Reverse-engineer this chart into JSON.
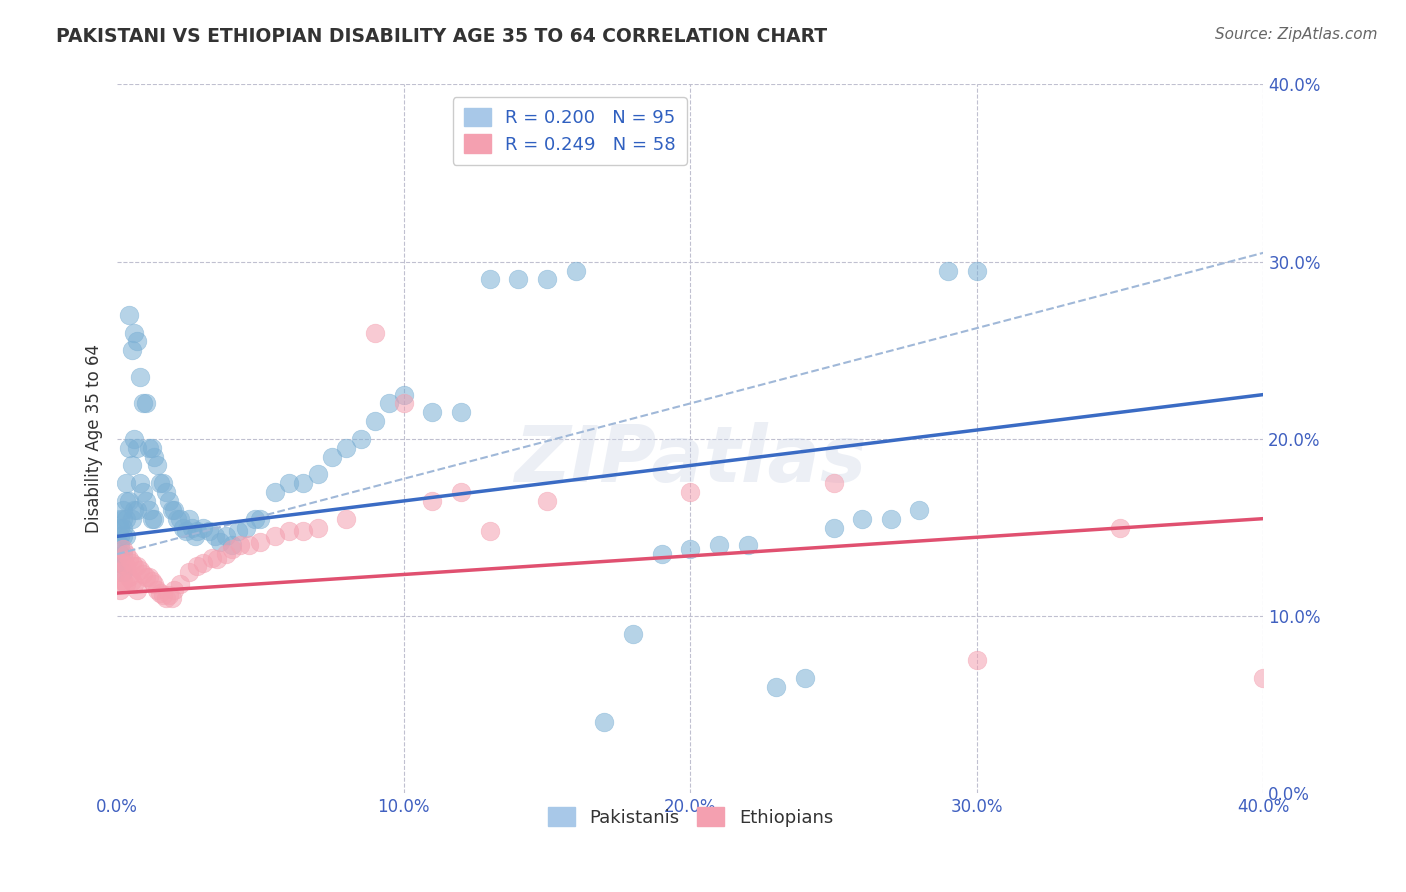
{
  "title": "PAKISTANI VS ETHIOPIAN DISABILITY AGE 35 TO 64 CORRELATION CHART",
  "source": "Source: ZipAtlas.com",
  "ylabel": "Disability Age 35 to 64",
  "xlim": [
    0.0,
    0.4
  ],
  "ylim": [
    0.0,
    0.4
  ],
  "pakistani_color": "#7bafd4",
  "ethiopian_color": "#f4a0b0",
  "pakistani_line_color": "#3a6bc4",
  "ethiopian_line_color": "#e05070",
  "dashed_line_color": "#a0b8d8",
  "R_pakistani": 0.2,
  "N_pakistani": 95,
  "R_ethiopian": 0.249,
  "N_ethiopian": 58,
  "legend_label_1": "R = 0.200   N = 95",
  "legend_label_2": "R = 0.249   N = 58",
  "legend_color_text": "#3060c0",
  "pakistani_x": [
    0.001,
    0.001,
    0.001,
    0.001,
    0.001,
    0.001,
    0.002,
    0.002,
    0.002,
    0.002,
    0.002,
    0.002,
    0.003,
    0.003,
    0.003,
    0.003,
    0.004,
    0.004,
    0.004,
    0.005,
    0.005,
    0.005,
    0.006,
    0.006,
    0.006,
    0.007,
    0.007,
    0.007,
    0.008,
    0.008,
    0.009,
    0.009,
    0.01,
    0.01,
    0.011,
    0.011,
    0.012,
    0.012,
    0.013,
    0.013,
    0.014,
    0.015,
    0.016,
    0.017,
    0.018,
    0.019,
    0.02,
    0.021,
    0.022,
    0.023,
    0.024,
    0.025,
    0.026,
    0.027,
    0.028,
    0.03,
    0.032,
    0.034,
    0.036,
    0.038,
    0.04,
    0.042,
    0.045,
    0.048,
    0.05,
    0.055,
    0.06,
    0.065,
    0.07,
    0.075,
    0.08,
    0.085,
    0.09,
    0.095,
    0.1,
    0.11,
    0.12,
    0.13,
    0.14,
    0.15,
    0.16,
    0.17,
    0.18,
    0.19,
    0.2,
    0.21,
    0.22,
    0.23,
    0.24,
    0.25,
    0.26,
    0.27,
    0.28,
    0.29,
    0.3
  ],
  "pakistani_y": [
    0.155,
    0.15,
    0.145,
    0.14,
    0.135,
    0.13,
    0.16,
    0.155,
    0.15,
    0.145,
    0.135,
    0.125,
    0.175,
    0.165,
    0.155,
    0.145,
    0.27,
    0.195,
    0.165,
    0.25,
    0.185,
    0.155,
    0.26,
    0.2,
    0.16,
    0.255,
    0.195,
    0.16,
    0.235,
    0.175,
    0.22,
    0.17,
    0.22,
    0.165,
    0.195,
    0.16,
    0.195,
    0.155,
    0.19,
    0.155,
    0.185,
    0.175,
    0.175,
    0.17,
    0.165,
    0.16,
    0.16,
    0.155,
    0.155,
    0.15,
    0.148,
    0.155,
    0.15,
    0.145,
    0.148,
    0.15,
    0.148,
    0.145,
    0.142,
    0.145,
    0.14,
    0.148,
    0.15,
    0.155,
    0.155,
    0.17,
    0.175,
    0.175,
    0.18,
    0.19,
    0.195,
    0.2,
    0.21,
    0.22,
    0.225,
    0.215,
    0.215,
    0.29,
    0.29,
    0.29,
    0.295,
    0.04,
    0.09,
    0.135,
    0.138,
    0.14,
    0.14,
    0.06,
    0.065,
    0.15,
    0.155,
    0.155,
    0.16,
    0.295,
    0.295
  ],
  "ethiopian_x": [
    0.001,
    0.001,
    0.001,
    0.001,
    0.002,
    0.002,
    0.002,
    0.003,
    0.003,
    0.003,
    0.004,
    0.004,
    0.005,
    0.005,
    0.006,
    0.006,
    0.007,
    0.007,
    0.008,
    0.009,
    0.01,
    0.011,
    0.012,
    0.013,
    0.014,
    0.015,
    0.016,
    0.017,
    0.018,
    0.019,
    0.02,
    0.022,
    0.025,
    0.028,
    0.03,
    0.033,
    0.035,
    0.038,
    0.04,
    0.043,
    0.046,
    0.05,
    0.055,
    0.06,
    0.065,
    0.07,
    0.08,
    0.09,
    0.1,
    0.11,
    0.12,
    0.13,
    0.15,
    0.2,
    0.25,
    0.3,
    0.35,
    0.4
  ],
  "ethiopian_y": [
    0.13,
    0.125,
    0.12,
    0.115,
    0.138,
    0.13,
    0.12,
    0.135,
    0.128,
    0.118,
    0.132,
    0.122,
    0.13,
    0.12,
    0.128,
    0.118,
    0.128,
    0.115,
    0.126,
    0.124,
    0.122,
    0.122,
    0.12,
    0.118,
    0.115,
    0.113,
    0.112,
    0.11,
    0.112,
    0.11,
    0.115,
    0.118,
    0.125,
    0.128,
    0.13,
    0.133,
    0.132,
    0.135,
    0.138,
    0.14,
    0.14,
    0.142,
    0.145,
    0.148,
    0.148,
    0.15,
    0.155,
    0.26,
    0.22,
    0.165,
    0.17,
    0.148,
    0.165,
    0.17,
    0.175,
    0.075,
    0.15,
    0.065
  ],
  "pak_line_x0": 0.0,
  "pak_line_x1": 0.4,
  "pak_line_y0": 0.145,
  "pak_line_y1": 0.225,
  "eth_line_x0": 0.0,
  "eth_line_x1": 0.4,
  "eth_line_y0": 0.113,
  "eth_line_y1": 0.155,
  "dash_line_x0": 0.0,
  "dash_line_x1": 0.4,
  "dash_line_y0": 0.135,
  "dash_line_y1": 0.305,
  "background_color": "#ffffff",
  "grid_color": "#c0c0d0",
  "watermark": "ZIPatlas",
  "watermark_color": "#d0d8e8"
}
